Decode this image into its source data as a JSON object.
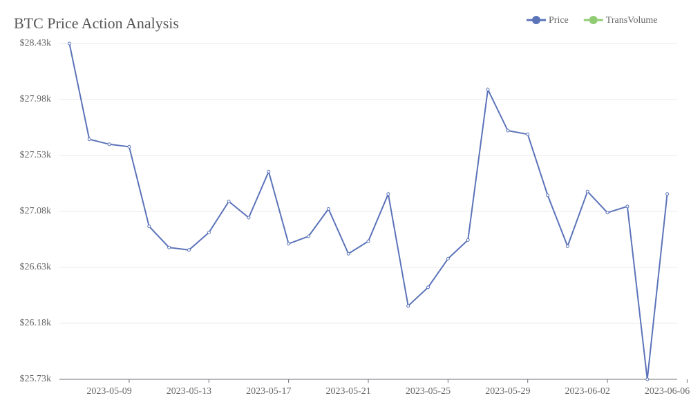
{
  "chart_data": {
    "type": "line",
    "title": "BTC Price Action Analysis",
    "categories": [
      null,
      null,
      "2023-05-09",
      null,
      null,
      null,
      "2023-05-13",
      null,
      null,
      null,
      "2023-05-17",
      null,
      null,
      null,
      "2023-05-21",
      null,
      null,
      null,
      "2023-05-25",
      null,
      null,
      null,
      "2023-05-29",
      null,
      null,
      null,
      "2023-06-02",
      null,
      null,
      null,
      "2023-06-06"
    ],
    "series": [
      {
        "name": "Price",
        "color": "#5b73b9",
        "values": [
          28430,
          27660,
          27620,
          27600,
          26960,
          26790,
          26770,
          26910,
          27160,
          27030,
          27400,
          26820,
          26880,
          27100,
          26740,
          26840,
          27220,
          26320,
          26470,
          26700,
          26850,
          28060,
          27730,
          27700,
          27210,
          26800,
          27240,
          27070,
          27120,
          25730,
          27220
        ]
      },
      {
        "name": "TransVolume",
        "color": "#91cc75",
        "values": [
          null,
          null,
          null,
          null,
          null,
          null,
          null,
          null,
          null,
          null,
          null,
          null,
          null,
          null,
          null,
          null,
          null,
          null,
          null,
          null,
          null,
          null,
          null,
          null,
          null,
          null,
          null,
          null,
          null,
          null,
          null
        ]
      }
    ],
    "ylim": [
      25730,
      28430
    ],
    "yticks": [
      {
        "value": 25730,
        "label": "$25.73k"
      },
      {
        "value": 26180,
        "label": "$26.18k"
      },
      {
        "value": 26630,
        "label": "$26.63k"
      },
      {
        "value": 27080,
        "label": "$27.08k"
      },
      {
        "value": 27530,
        "label": "$27.53k"
      },
      {
        "value": 27980,
        "label": "$27.98k"
      },
      {
        "value": 28430,
        "label": "$28.43k"
      }
    ],
    "grid": true
  }
}
